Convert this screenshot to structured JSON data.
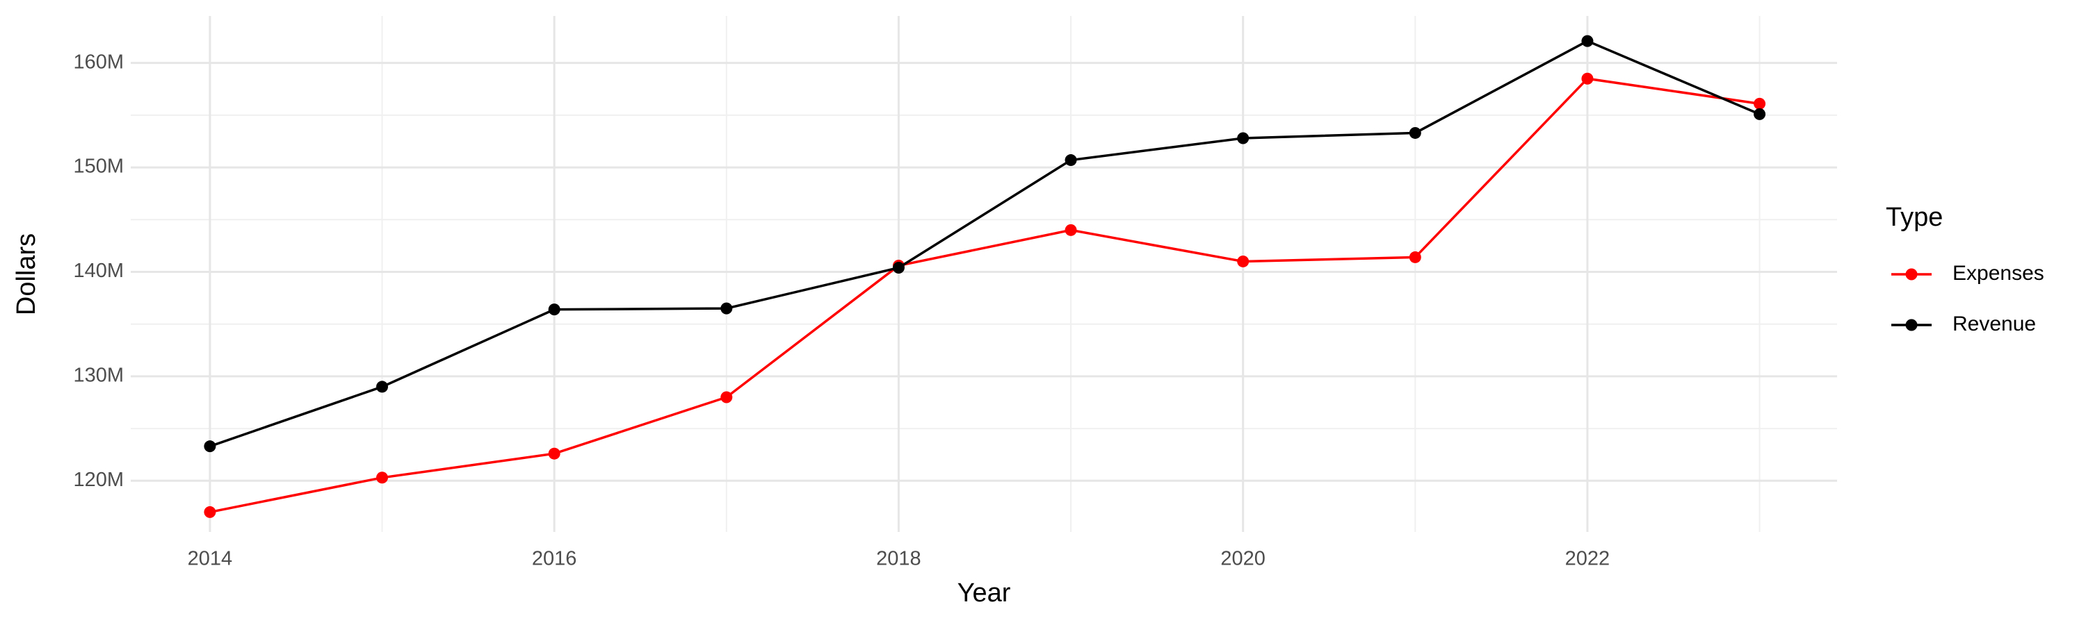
{
  "chart_data": {
    "type": "line",
    "x_label": "Year",
    "y_label": "Dollars",
    "legend_title": "Type",
    "legend_position": "right",
    "grid": true,
    "x": [
      2014,
      2015,
      2016,
      2017,
      2018,
      2019,
      2020,
      2021,
      2022,
      2023
    ],
    "series": [
      {
        "name": "Expenses",
        "color": "#ff0000",
        "values": [
          117000000,
          120300000,
          122600000,
          128000000,
          140600000,
          144000000,
          141000000,
          141400000,
          158500000,
          156100000
        ]
      },
      {
        "name": "Revenue",
        "color": "#000000",
        "values": [
          123300000,
          129000000,
          136400000,
          136500000,
          140400000,
          150700000,
          152800000,
          153300000,
          162100000,
          155100000
        ]
      }
    ],
    "xlim": [
      2013.54,
      2023.45
    ],
    "xticks": [
      2014,
      2016,
      2018,
      2020,
      2022
    ],
    "x_minor_ticks": [
      2015,
      2017,
      2019,
      2021,
      2023
    ],
    "ylim": [
      115100000,
      164500000
    ],
    "yticks": [
      {
        "value": 120000000,
        "label": "120M"
      },
      {
        "value": 130000000,
        "label": "130M"
      },
      {
        "value": 140000000,
        "label": "140M"
      },
      {
        "value": 150000000,
        "label": "150M"
      },
      {
        "value": 160000000,
        "label": "160M"
      }
    ],
    "y_minor_ticks": [
      115000000,
      125000000,
      135000000,
      145000000,
      155000000
    ]
  }
}
